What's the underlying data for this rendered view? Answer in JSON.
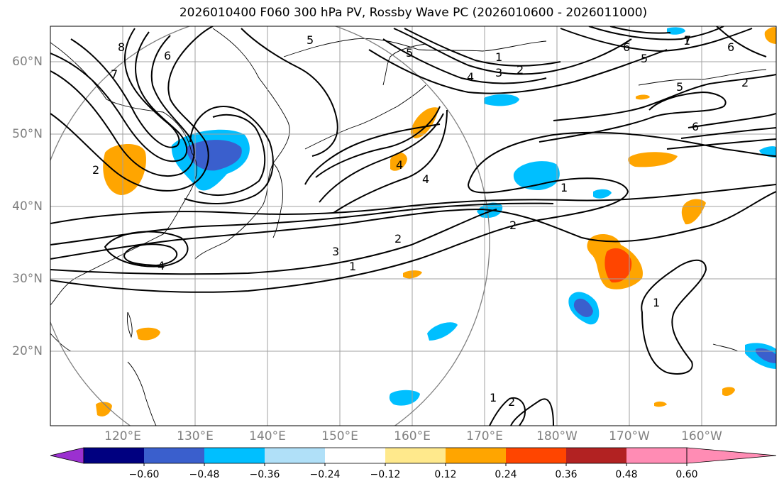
{
  "title": "2026010400 F060 300 hPa PV, Rossby Wave PC (2026010600 - 2026011000)",
  "lat_labels": [
    "60°N",
    "50°N",
    "40°N",
    "30°N",
    "20°N"
  ],
  "lon_labels": [
    "120°E",
    "130°E",
    "140°E",
    "150°E",
    "160°E",
    "170°E",
    "180°W",
    "170°W",
    "160°W"
  ],
  "contour_labels": [
    "8",
    "7",
    "6",
    "5",
    "2",
    "1",
    "2",
    "3",
    "4",
    "5",
    "6",
    "1",
    "2",
    "7",
    "6",
    "5",
    "4",
    "5",
    "6",
    "4",
    "3",
    "2",
    "1",
    "1",
    "2",
    "4",
    "1",
    "1",
    "2"
  ],
  "colorbar": {
    "ticks": [
      "−0.60",
      "−0.48",
      "−0.36",
      "−0.24",
      "−0.12",
      "0.12",
      "0.24",
      "0.36",
      "0.48",
      "0.60"
    ],
    "colors": [
      "#9b30d0",
      "#000080",
      "#3a5fcd",
      "#00bfff",
      "#b0e0f8",
      "#ffffff",
      "#ffe98c",
      "#ffa500",
      "#ff4500",
      "#b22222",
      "#ff8cb4"
    ]
  },
  "colors": {
    "positive": "#ffa500",
    "negative": "#00bfff",
    "strong_negative": "#3a5fcd",
    "strong_positive": "#ff4500",
    "grid": "#a0a0a0",
    "axis_label": "#808080"
  }
}
